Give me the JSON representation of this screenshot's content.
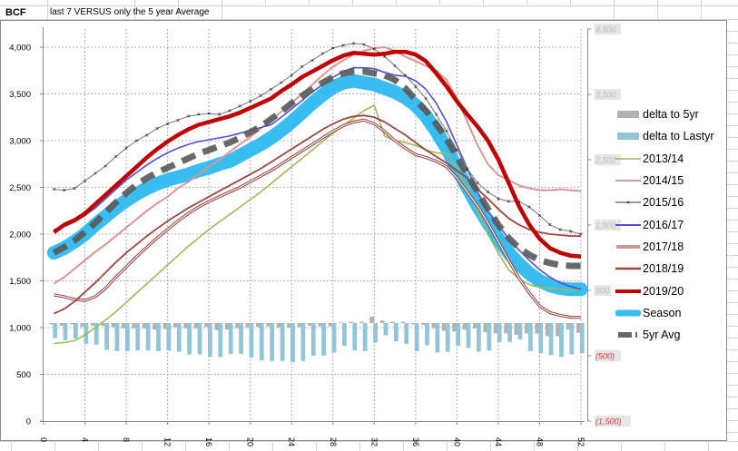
{
  "header": {
    "unit_label": "BCF",
    "subtitle": "last 7 VERSUS only the 5 year Average"
  },
  "chart_data": {
    "type": "line",
    "title": "last 7 VERSUS only the 5 year Average",
    "ylabel": "BCF",
    "xlabel": "",
    "xlim": [
      0,
      52
    ],
    "x_ticks": [
      0,
      4,
      8,
      12,
      16,
      20,
      24,
      28,
      32,
      36,
      40,
      44,
      48,
      52
    ],
    "x_tick_labels": [
      "0",
      "4",
      "8",
      "12",
      "16",
      "20",
      "24",
      "28",
      "32",
      "36",
      "40",
      "44",
      "48",
      "52"
    ],
    "ylim": [
      0,
      4000
    ],
    "y_ticks": [
      0,
      500,
      1000,
      1500,
      2000,
      2500,
      3000,
      3500,
      4000
    ],
    "y_tick_labels": [
      "0",
      "500",
      "1,000",
      "1,500",
      "2,000",
      "2,500",
      "3,000",
      "3,500",
      "4,000"
    ],
    "y2lim": [
      -1500,
      4500
    ],
    "y2_ticks": [
      4500,
      3500,
      2500,
      1500,
      500,
      -500,
      -1500
    ],
    "y2_tick_labels": [
      "4,500",
      "3,500",
      "2,500",
      "1,500",
      "500",
      "(500)",
      "(1,500)"
    ],
    "grid": true,
    "legend_position": "right",
    "x": [
      1,
      2,
      3,
      4,
      5,
      6,
      7,
      8,
      9,
      10,
      11,
      12,
      13,
      14,
      15,
      16,
      17,
      18,
      19,
      20,
      21,
      22,
      23,
      24,
      25,
      26,
      27,
      28,
      29,
      30,
      31,
      32,
      33,
      34,
      35,
      36,
      37,
      38,
      39,
      40,
      41,
      42,
      43,
      44,
      45,
      46,
      47,
      48,
      49,
      50,
      51,
      52
    ],
    "series": [
      {
        "name": "2013/14",
        "color": "#9bbb59",
        "axis": "left",
        "values": [
          830,
          840,
          860,
          920,
          1000,
          1080,
          1170,
          1270,
          1370,
          1470,
          1570,
          1670,
          1770,
          1870,
          1960,
          2050,
          2130,
          2210,
          2290,
          2370,
          2450,
          2540,
          2630,
          2720,
          2810,
          2900,
          2990,
          3080,
          3160,
          3240,
          3320,
          3380,
          3050,
          3000,
          2980,
          2950,
          2900,
          2870,
          2860,
          2700,
          2500,
          2250,
          2000,
          1800,
          1620,
          1520,
          1460,
          1430,
          1420,
          1410,
          1400,
          1400
        ]
      },
      {
        "name": "2014/15",
        "color": "#d99694",
        "axis": "left",
        "values": [
          1470,
          1540,
          1630,
          1720,
          1810,
          1890,
          1980,
          2070,
          2160,
          2250,
          2330,
          2400,
          2490,
          2560,
          2640,
          2720,
          2790,
          2880,
          2960,
          3040,
          3130,
          3220,
          3310,
          3400,
          3500,
          3600,
          3700,
          3790,
          3860,
          3920,
          3960,
          3990,
          4000,
          3960,
          3900,
          3850,
          3800,
          3750,
          3650,
          3450,
          3200,
          2950,
          2750,
          2630,
          2580,
          2520,
          2490,
          2470,
          2470,
          2480,
          2470,
          2460
        ]
      },
      {
        "name": "2015/16",
        "color": "#333333",
        "axis": "left",
        "marker": "x",
        "values": [
          2480,
          2470,
          2490,
          2570,
          2650,
          2730,
          2830,
          2920,
          3000,
          3060,
          3130,
          3180,
          3220,
          3260,
          3280,
          3290,
          3280,
          3320,
          3370,
          3420,
          3480,
          3550,
          3620,
          3700,
          3790,
          3860,
          3930,
          3990,
          4020,
          4040,
          4030,
          3980,
          3900,
          3800,
          3700,
          3580,
          3450,
          3280,
          3100,
          2900,
          2700,
          2550,
          2450,
          2380,
          2350,
          2350,
          2290,
          2200,
          2100,
          2050,
          2030,
          2000
        ]
      },
      {
        "name": "2016/17",
        "color": "#4f4fdc",
        "axis": "left",
        "values": [
          2050,
          2080,
          2130,
          2200,
          2280,
          2380,
          2480,
          2580,
          2660,
          2740,
          2810,
          2870,
          2920,
          2960,
          2990,
          3010,
          3030,
          3050,
          3080,
          3110,
          3140,
          3170,
          3250,
          3340,
          3430,
          3520,
          3600,
          3680,
          3740,
          3780,
          3780,
          3770,
          3730,
          3700,
          3690,
          3640,
          3550,
          3400,
          3200,
          2950,
          2700,
          2450,
          2250,
          2100,
          1950,
          1830,
          1720,
          1620,
          1540,
          1480,
          1440,
          1410
        ]
      },
      {
        "name": "2017/18",
        "color": "#943634",
        "axis": "left",
        "style": "double",
        "values": [
          1350,
          1330,
          1300,
          1290,
          1330,
          1420,
          1540,
          1650,
          1760,
          1860,
          1960,
          2050,
          2140,
          2220,
          2290,
          2350,
          2400,
          2450,
          2500,
          2560,
          2620,
          2680,
          2750,
          2820,
          2890,
          2960,
          3030,
          3100,
          3160,
          3200,
          3220,
          3180,
          3100,
          3000,
          2920,
          2850,
          2820,
          2780,
          2720,
          2600,
          2450,
          2300,
          2120,
          1920,
          1720,
          1530,
          1370,
          1230,
          1160,
          1130,
          1110,
          1110
        ]
      },
      {
        "name": "2018/19",
        "color": "#a0443f",
        "axis": "left",
        "values": [
          1150,
          1200,
          1280,
          1380,
          1480,
          1590,
          1700,
          1800,
          1890,
          1980,
          2060,
          2140,
          2210,
          2280,
          2340,
          2400,
          2460,
          2520,
          2580,
          2640,
          2700,
          2770,
          2840,
          2910,
          2980,
          3050,
          3120,
          3180,
          3230,
          3260,
          3270,
          3250,
          3200,
          3130,
          3060,
          2980,
          2900,
          2830,
          2760,
          2680,
          2600,
          2480,
          2380,
          2270,
          2170,
          2100,
          2050,
          2020,
          2000,
          1990,
          1980,
          1980
        ]
      },
      {
        "name": "2019/20",
        "color": "#c00000",
        "axis": "left",
        "values": [
          2020,
          2100,
          2150,
          2220,
          2320,
          2420,
          2520,
          2620,
          2720,
          2820,
          2910,
          2990,
          3060,
          3120,
          3170,
          3200,
          3230,
          3260,
          3300,
          3350,
          3400,
          3450,
          3530,
          3600,
          3680,
          3740,
          3800,
          3860,
          3910,
          3940,
          3930,
          3920,
          3930,
          3950,
          3950,
          3920,
          3850,
          3720,
          3580,
          3420,
          3280,
          3150,
          3000,
          2800,
          2550,
          2300,
          2100,
          1950,
          1850,
          1800,
          1770,
          1760
        ]
      },
      {
        "name": "Season",
        "color": "#39bdf0",
        "axis": "left",
        "style": "thick",
        "values": [
          1800,
          1850,
          1920,
          2000,
          2100,
          2190,
          2280,
          2360,
          2430,
          2490,
          2540,
          2580,
          2610,
          2640,
          2680,
          2710,
          2750,
          2780,
          2840,
          2900,
          2960,
          3030,
          3110,
          3200,
          3300,
          3400,
          3490,
          3570,
          3620,
          3640,
          3620,
          3600,
          3560,
          3520,
          3460,
          3380,
          3260,
          3100,
          2920,
          2700,
          2500,
          2300,
          2120,
          1950,
          1800,
          1680,
          1580,
          1500,
          1450,
          1420,
          1410,
          1410
        ]
      },
      {
        "name": "5yr Avg",
        "color": "#595959",
        "axis": "left",
        "style": "dashed",
        "values": [
          1800,
          1860,
          1930,
          2020,
          2120,
          2230,
          2340,
          2440,
          2530,
          2600,
          2660,
          2710,
          2760,
          2810,
          2860,
          2900,
          2940,
          2980,
          3030,
          3090,
          3150,
          3230,
          3310,
          3400,
          3480,
          3550,
          3620,
          3680,
          3720,
          3740,
          3740,
          3720,
          3700,
          3650,
          3560,
          3440,
          3320,
          3180,
          3020,
          2830,
          2640,
          2450,
          2270,
          2100,
          1960,
          1850,
          1780,
          1720,
          1690,
          1670,
          1660,
          1660
        ]
      }
    ],
    "bar_series": [
      {
        "name": "delta to 5yr",
        "color": "#b2b2b2",
        "axis": "right",
        "values": [
          -20,
          -40,
          -20,
          -60,
          -40,
          -40,
          -60,
          -80,
          -80,
          -80,
          -100,
          -90,
          -60,
          -80,
          -80,
          -60,
          -110,
          -100,
          -80,
          -70,
          -60,
          -50,
          -70,
          -70,
          -60,
          -40,
          -50,
          -50,
          10,
          20,
          20,
          100,
          40,
          20,
          20,
          -20,
          -30,
          -80,
          -120,
          -130,
          -100,
          -80,
          -140,
          -160,
          -160,
          -180,
          -160,
          -160,
          -200,
          -200,
          -100,
          -150
        ]
      },
      {
        "name": "delta to Lastyr",
        "color": "#92c5d8",
        "axis": "right",
        "values": [
          -230,
          -260,
          -240,
          -320,
          -330,
          -410,
          -430,
          -430,
          -420,
          -420,
          -430,
          -420,
          -440,
          -480,
          -480,
          -520,
          -520,
          -470,
          -470,
          -530,
          -570,
          -580,
          -580,
          -600,
          -580,
          -500,
          -500,
          -450,
          -350,
          -420,
          -430,
          -300,
          -190,
          -280,
          -320,
          -430,
          -340,
          -450,
          -440,
          -350,
          -380,
          -440,
          -420,
          -290,
          -290,
          -250,
          -430,
          -460,
          -490,
          -520,
          -480,
          -460
        ]
      }
    ]
  },
  "legend": {
    "items": [
      {
        "label": "delta to 5yr",
        "kind": "bar",
        "color": "#b2b2b2"
      },
      {
        "label": "delta to Lastyr",
        "kind": "bar",
        "color": "#92c5d8"
      },
      {
        "label": "2013/14",
        "kind": "line",
        "color": "#9bbb59"
      },
      {
        "label": "2014/15",
        "kind": "line",
        "color": "#d99694"
      },
      {
        "label": "2015/16",
        "kind": "marker-line",
        "color": "#333333"
      },
      {
        "label": "2016/17",
        "kind": "line",
        "color": "#4f4fdc"
      },
      {
        "label": "2017/18",
        "kind": "double-line",
        "color": "#943634"
      },
      {
        "label": "2018/19",
        "kind": "line",
        "color": "#a0443f"
      },
      {
        "label": "2019/20",
        "kind": "thick-line",
        "color": "#c00000"
      },
      {
        "label": "Season",
        "kind": "thick-line",
        "color": "#39bdf0"
      },
      {
        "label": "5yr Avg",
        "kind": "dash",
        "color": "#595959"
      }
    ]
  }
}
